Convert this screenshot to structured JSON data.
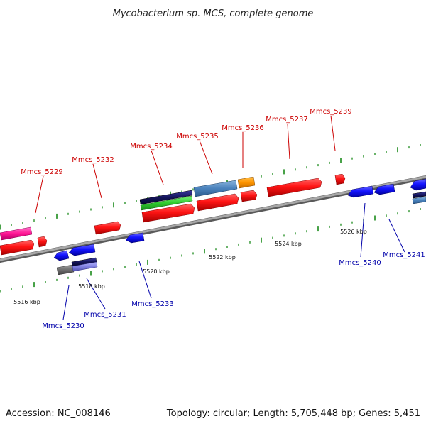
{
  "title": "Mycobacterium sp. MCS, complete genome",
  "accession": "Accession: NC_008146",
  "summary": "Topology: circular; Length: 5,705,448 bp; Genes: 5,451",
  "colors": {
    "top_label": "#cc0000",
    "bottom_label": "#0000aa",
    "backbone": "#8c8c8c",
    "tick": "#1a8a1a"
  },
  "kbp_labels": [
    "5516 kbp",
    "5518 kbp",
    "5520 kbp",
    "5522 kbp",
    "5524 kbp",
    "5526 kbp"
  ],
  "top_genes": [
    "Mmcs_5229",
    "Mmcs_5232",
    "Mmcs_5234",
    "Mmcs_5235",
    "Mmcs_5236",
    "Mmcs_5237",
    "Mmcs_5239"
  ],
  "bottom_genes": [
    "Mmcs_5230",
    "Mmcs_5231",
    "Mmcs_5233",
    "Mmcs_5240",
    "Mmcs_5241"
  ]
}
